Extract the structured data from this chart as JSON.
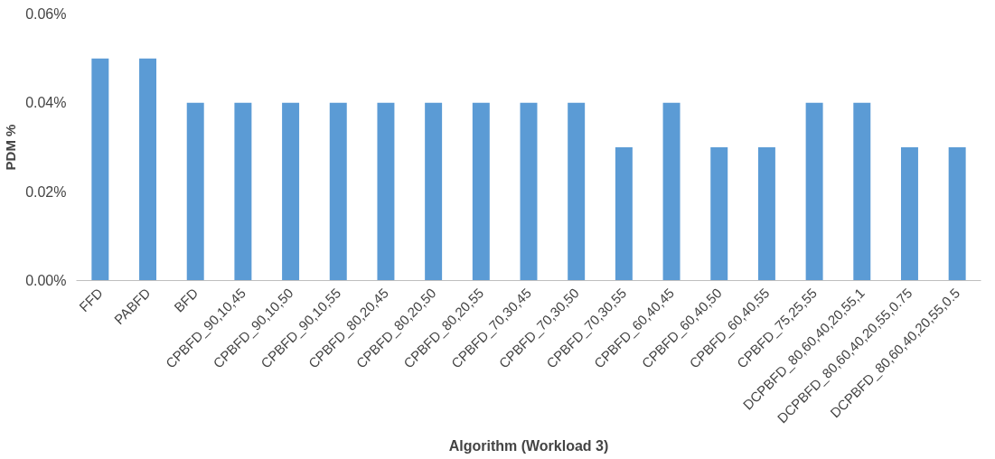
{
  "chart_data": {
    "type": "bar",
    "xlabel": "Algorithm (Workload 3)",
    "ylabel": "PDM %",
    "categories": [
      "FFD",
      "PABFD",
      "BFD",
      "CPBFD_90,10,45",
      "CPBFD_90,10,50",
      "CPBFD_90,10,55",
      "CPBFD_80,20,45",
      "CPBFD_80,20,50",
      "CPBFD_80,20,55",
      "CPBFD_70,30,45",
      "CPBFD_70,30,50",
      "CPBFD_70,30,55",
      "CPBFD_60,40,45",
      "CPBFD_60,40,50",
      "CPBFD_60,40,55",
      "CPBFD_75,25,55",
      "DCPBFD_80,60,40,20,55,1",
      "DCPBFD_80,60,40,20,55,0.75",
      "DCPBFD_80,60,40,20,55,0.5"
    ],
    "values": [
      0.05,
      0.05,
      0.04,
      0.04,
      0.04,
      0.04,
      0.04,
      0.04,
      0.04,
      0.04,
      0.04,
      0.03,
      0.04,
      0.03,
      0.03,
      0.04,
      0.04,
      0.03,
      0.03
    ],
    "color": "#5b9bd5",
    "ylim": [
      0,
      0.06
    ],
    "yticks": [
      {
        "value": 0,
        "label": "0.00%"
      },
      {
        "value": 0.02,
        "label": "0.02%"
      },
      {
        "value": 0.04,
        "label": "0.04%"
      },
      {
        "value": 0.06,
        "label": "0.06%"
      }
    ],
    "grid": false
  }
}
